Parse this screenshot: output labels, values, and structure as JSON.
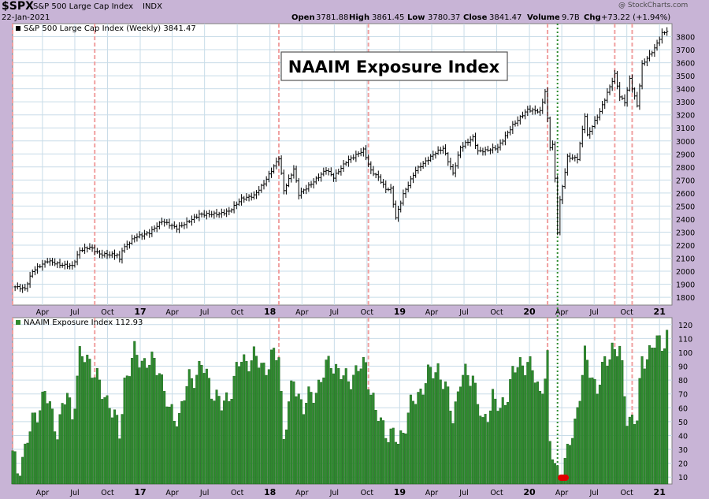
{
  "header": {
    "symbol": "$SPX",
    "name": "S&P 500 Large Cap Index",
    "exchange": "INDX",
    "date": "22-Jan-2021",
    "open_label": "Open",
    "open": "3781.88",
    "high_label": "High",
    "high": "3861.45",
    "low_label": "Low",
    "low": "3780.37",
    "close_label": "Close",
    "close": "3841.47",
    "volume_label": "Volume",
    "volume": "9.7B",
    "chg_label": "Chg",
    "chg": "+73.22 (+1.94%)",
    "watermark": "@ StockCharts.com"
  },
  "colors": {
    "background": "#c8b4d6",
    "panel": "#ffffff",
    "grid": "#c8dce8",
    "price_bars": "#000000",
    "histogram": "#2e8b2e",
    "signal_lines": "#f0a0a0",
    "vline": "#2e8b2e",
    "marker": "#e00000"
  },
  "chart_data": [
    {
      "type": "ohlc",
      "title": "NAAIM Exposure Index",
      "legend": "S&P 500 Large Cap Index (Weekly) 3841.47",
      "ylim": [
        1740,
        3900
      ],
      "y_ticks": [
        1800,
        1900,
        2000,
        2100,
        2200,
        2300,
        2400,
        2500,
        2600,
        2700,
        2800,
        2900,
        3000,
        3100,
        3200,
        3300,
        3400,
        3500,
        3600,
        3700,
        3800
      ],
      "x_ticks": [
        "Apr",
        "Jul",
        "Oct",
        "17",
        "Apr",
        "Jul",
        "Oct",
        "18",
        "Apr",
        "Jul",
        "Oct",
        "19",
        "Apr",
        "Jul",
        "Oct",
        "20",
        "Apr",
        "Jul",
        "Oct",
        "21"
      ],
      "bold_x_ticks": [
        "17",
        "18",
        "19",
        "20",
        "21"
      ],
      "anchors": [
        [
          "2016-01-15",
          1880
        ],
        [
          "2016-02-12",
          1865
        ],
        [
          "2016-03-04",
          2000
        ],
        [
          "2016-04-15",
          2080
        ],
        [
          "2016-05-20",
          2050
        ],
        [
          "2016-06-24",
          2040
        ],
        [
          "2016-07-15",
          2160
        ],
        [
          "2016-08-12",
          2185
        ],
        [
          "2016-09-09",
          2130
        ],
        [
          "2016-10-28",
          2125
        ],
        [
          "2016-11-04",
          2085
        ],
        [
          "2016-11-11",
          2165
        ],
        [
          "2016-12-16",
          2260
        ],
        [
          "2017-01-27",
          2295
        ],
        [
          "2017-03-03",
          2385
        ],
        [
          "2017-04-14",
          2330
        ],
        [
          "2017-05-19",
          2385
        ],
        [
          "2017-06-16",
          2435
        ],
        [
          "2017-08-11",
          2440
        ],
        [
          "2017-09-08",
          2460
        ],
        [
          "2017-10-13",
          2555
        ],
        [
          "2017-11-17",
          2580
        ],
        [
          "2017-12-15",
          2675
        ],
        [
          "2018-01-26",
          2870
        ],
        [
          "2018-02-09",
          2620
        ],
        [
          "2018-03-09",
          2785
        ],
        [
          "2018-03-23",
          2590
        ],
        [
          "2018-04-27",
          2670
        ],
        [
          "2018-06-08",
          2780
        ],
        [
          "2018-06-29",
          2720
        ],
        [
          "2018-08-03",
          2840
        ],
        [
          "2018-09-21",
          2930
        ],
        [
          "2018-10-12",
          2770
        ],
        [
          "2018-11-02",
          2720
        ],
        [
          "2018-11-23",
          2630
        ],
        [
          "2018-12-07",
          2630
        ],
        [
          "2018-12-21",
          2410
        ],
        [
          "2019-01-11",
          2590
        ],
        [
          "2019-02-15",
          2775
        ],
        [
          "2019-04-12",
          2910
        ],
        [
          "2019-05-03",
          2945
        ],
        [
          "2019-05-31",
          2750
        ],
        [
          "2019-06-21",
          2950
        ],
        [
          "2019-07-26",
          3025
        ],
        [
          "2019-08-09",
          2920
        ],
        [
          "2019-08-30",
          2925
        ],
        [
          "2019-10-04",
          2950
        ],
        [
          "2019-11-15",
          3120
        ],
        [
          "2019-12-27",
          3240
        ],
        [
          "2020-01-31",
          3225
        ],
        [
          "2020-02-14",
          3380
        ],
        [
          "2020-02-28",
          2955
        ],
        [
          "2020-03-06",
          2970
        ],
        [
          "2020-03-13",
          2710
        ],
        [
          "2020-03-20",
          2305
        ],
        [
          "2020-03-27",
          2540
        ],
        [
          "2020-04-17",
          2875
        ],
        [
          "2020-05-15",
          2865
        ],
        [
          "2020-06-05",
          3195
        ],
        [
          "2020-06-12",
          3040
        ],
        [
          "2020-07-17",
          3225
        ],
        [
          "2020-08-28",
          3510
        ],
        [
          "2020-09-11",
          3340
        ],
        [
          "2020-09-25",
          3300
        ],
        [
          "2020-10-09",
          3475
        ],
        [
          "2020-10-30",
          3270
        ],
        [
          "2020-11-13",
          3585
        ],
        [
          "2020-12-18",
          3710
        ],
        [
          "2021-01-08",
          3825
        ],
        [
          "2021-01-22",
          3841
        ]
      ],
      "last_close": 3841.47
    },
    {
      "type": "bar",
      "legend": "NAAIM Exposure Index 112.93",
      "ylim": [
        5,
        125
      ],
      "y_ticks": [
        10,
        20,
        30,
        40,
        50,
        60,
        70,
        80,
        90,
        100,
        110,
        120
      ],
      "x_ticks": [
        "Apr",
        "Jul",
        "Oct",
        "17",
        "Apr",
        "Jul",
        "Oct",
        "18",
        "Apr",
        "Jul",
        "Oct",
        "19",
        "Apr",
        "Jul",
        "Oct",
        "20",
        "Apr",
        "Jul",
        "Oct",
        "21"
      ],
      "bold_x_ticks": [
        "17",
        "18",
        "19",
        "20",
        "21"
      ],
      "anchors": [
        [
          "2016-01-08",
          25
        ],
        [
          "2016-01-22",
          15
        ],
        [
          "2016-02-12",
          30
        ],
        [
          "2016-03-11",
          55
        ],
        [
          "2016-04-08",
          70
        ],
        [
          "2016-05-13",
          45
        ],
        [
          "2016-06-10",
          70
        ],
        [
          "2016-06-24",
          55
        ],
        [
          "2016-07-15",
          96
        ],
        [
          "2016-08-12",
          95
        ],
        [
          "2016-09-16",
          70
        ],
        [
          "2016-10-07",
          65
        ],
        [
          "2016-11-04",
          40
        ],
        [
          "2016-11-18",
          80
        ],
        [
          "2016-12-16",
          98
        ],
        [
          "2017-01-27",
          92
        ],
        [
          "2017-02-24",
          90
        ],
        [
          "2017-03-24",
          55
        ],
        [
          "2017-04-21",
          55
        ],
        [
          "2017-05-19",
          80
        ],
        [
          "2017-06-23",
          90
        ],
        [
          "2017-08-18",
          60
        ],
        [
          "2017-09-08",
          70
        ],
        [
          "2017-10-13",
          95
        ],
        [
          "2017-11-17",
          95
        ],
        [
          "2017-12-22",
          90
        ],
        [
          "2018-01-26",
          100
        ],
        [
          "2018-02-09",
          40
        ],
        [
          "2018-03-09",
          80
        ],
        [
          "2018-04-06",
          60
        ],
        [
          "2018-05-25",
          80
        ],
        [
          "2018-06-22",
          95
        ],
        [
          "2018-07-27",
          80
        ],
        [
          "2018-08-31",
          85
        ],
        [
          "2018-09-28",
          92
        ],
        [
          "2018-10-26",
          55
        ],
        [
          "2018-12-07",
          40
        ],
        [
          "2018-12-28",
          35
        ],
        [
          "2019-02-01",
          60
        ],
        [
          "2019-03-15",
          80
        ],
        [
          "2019-04-19",
          90
        ],
        [
          "2019-05-31",
          55
        ],
        [
          "2019-06-21",
          80
        ],
        [
          "2019-07-26",
          85
        ],
        [
          "2019-08-23",
          45
        ],
        [
          "2019-09-20",
          70
        ],
        [
          "2019-10-11",
          55
        ],
        [
          "2019-11-15",
          85
        ],
        [
          "2019-12-27",
          95
        ],
        [
          "2020-01-31",
          70
        ],
        [
          "2020-02-21",
          95
        ],
        [
          "2020-02-28",
          30
        ],
        [
          "2020-03-13",
          20
        ],
        [
          "2020-03-27",
          10
        ],
        [
          "2020-04-17",
          25
        ],
        [
          "2020-05-08",
          50
        ],
        [
          "2020-06-05",
          95
        ],
        [
          "2020-07-10",
          75
        ],
        [
          "2020-08-21",
          105
        ],
        [
          "2020-09-11",
          100
        ],
        [
          "2020-10-02",
          55
        ],
        [
          "2020-10-30",
          50
        ],
        [
          "2020-11-13",
          95
        ],
        [
          "2020-12-18",
          105
        ],
        [
          "2021-01-08",
          108
        ],
        [
          "2021-01-22",
          112.93
        ]
      ],
      "last_value": 112.93
    }
  ]
}
